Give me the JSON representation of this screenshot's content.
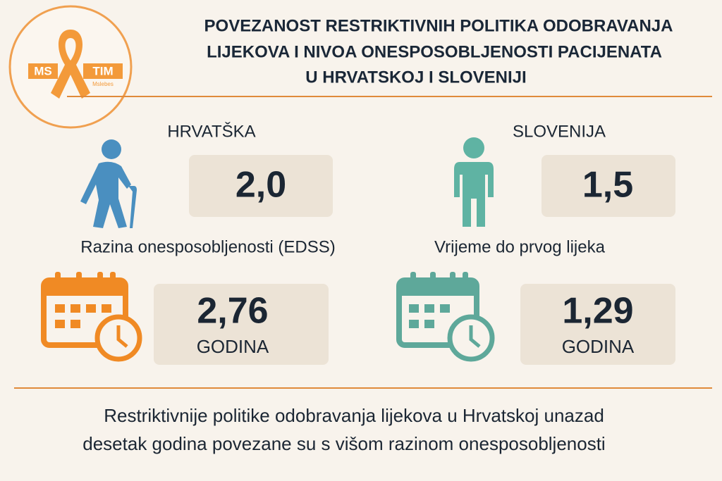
{
  "logo": {
    "left": "MS",
    "right": "TIM",
    "caption": "Mslebes"
  },
  "header": {
    "title_lines": [
      "POVEZANOST RESTRIKTIVNIH POLITIKA ODOBRAVANJA",
      "LIJEKOVA I NIVOA ONESPOSOBLJENOSTI PACIJENATA",
      "U HRVATSKOJ I SLOVENIJI"
    ]
  },
  "panels": [
    {
      "country": "HRVATŠKA",
      "edss": "2,0",
      "label": "Razina onesposobljenosti (EDSS)",
      "time": "2,76",
      "unit": "GODINA"
    },
    {
      "country": "SLOVENIJA",
      "edss": "1,5",
      "label": "Vrijeme do prvog lijeka",
      "time": "1,29",
      "unit": "GODINA"
    }
  ],
  "footer": {
    "lines": [
      "Restriktivnije politike odobravanja lijekova u Hrvatskoj unazad",
      "desetak godina povezane su s višom razinom onesposobljenosti"
    ]
  }
}
